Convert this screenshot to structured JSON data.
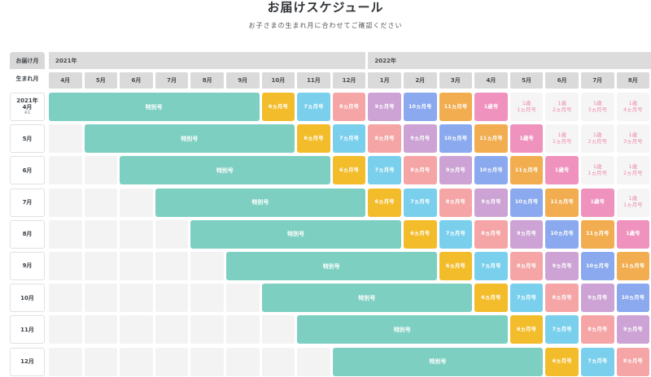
{
  "page": {
    "title": "お届けスケジュール",
    "subtitle": "お子さまの生まれ月に合わせてご確認ください"
  },
  "header": {
    "corner_top": "お届け月",
    "corner_bottom": "生まれ月",
    "years": [
      "2021年",
      "2022年"
    ],
    "months": [
      "4月",
      "5月",
      "6月",
      "7月",
      "8月",
      "9月",
      "10月",
      "11月",
      "12月",
      "1月",
      "2月",
      "3月",
      "4月",
      "5月",
      "6月",
      "7月",
      "8月"
    ]
  },
  "colors": {
    "特別号": "#7dcfc1",
    "6ヵ月号": "#f3bc2b",
    "7ヵ月号": "#7ad0ec",
    "8ヵ月号": "#f5a5a5",
    "9ヵ月号": "#cca3d4",
    "10ヵ月号": "#8aa9ee",
    "11ヵ月号": "#f1ad4f",
    "1歳号": "#ef92bd"
  },
  "rows": [
    {
      "label": "2021年",
      "label2": "4月",
      "note": "※1",
      "special": {
        "start": 0,
        "len": 6,
        "label": "特別号"
      },
      "cells": [
        "6ヵ月号",
        "7ヵ月号",
        "8ヵ月号",
        "9ヵ月号",
        "10ヵ月号",
        "11ヵ月号",
        "1歳号",
        "1歳\n1ヵ月号",
        "1歳\n2ヵ月号",
        "1歳\n3ヵ月号",
        "1歳\n4ヵ月号"
      ]
    },
    {
      "label": "5月",
      "special": {
        "start": 1,
        "len": 6,
        "label": "特別号"
      },
      "cells": [
        "6ヵ月号",
        "7ヵ月号",
        "8ヵ月号",
        "9ヵ月号",
        "10ヵ月号",
        "11ヵ月号",
        "1歳号",
        "1歳\n1ヵ月号",
        "1歳\n2ヵ月号",
        "1歳\n3ヵ月号"
      ]
    },
    {
      "label": "6月",
      "special": {
        "start": 2,
        "len": 6,
        "label": "特別号"
      },
      "cells": [
        "6ヵ月号",
        "7ヵ月号",
        "8ヵ月号",
        "9ヵ月号",
        "10ヵ月号",
        "11ヵ月号",
        "1歳号",
        "1歳\n1ヵ月号",
        "1歳\n2ヵ月号"
      ]
    },
    {
      "label": "7月",
      "special": {
        "start": 3,
        "len": 6,
        "label": "特別号"
      },
      "cells": [
        "6ヵ月号",
        "7ヵ月号",
        "8ヵ月号",
        "9ヵ月号",
        "10ヵ月号",
        "11ヵ月号",
        "1歳号",
        "1歳\n1ヵ月号"
      ]
    },
    {
      "label": "8月",
      "special": {
        "start": 4,
        "len": 6,
        "label": "特別号"
      },
      "cells": [
        "6ヵ月号",
        "7ヵ月号",
        "8ヵ月号",
        "9ヵ月号",
        "10ヵ月号",
        "11ヵ月号",
        "1歳号"
      ]
    },
    {
      "label": "9月",
      "special": {
        "start": 5,
        "len": 6,
        "label": "特別号"
      },
      "cells": [
        "6ヵ月号",
        "7ヵ月号",
        "8ヵ月号",
        "9ヵ月号",
        "10ヵ月号",
        "11ヵ月号"
      ]
    },
    {
      "label": "10月",
      "special": {
        "start": 6,
        "len": 6,
        "label": "特別号"
      },
      "cells": [
        "6ヵ月号",
        "7ヵ月号",
        "8ヵ月号",
        "9ヵ月号",
        "10ヵ月号"
      ]
    },
    {
      "label": "11月",
      "special": {
        "start": 7,
        "len": 6,
        "label": "特別号"
      },
      "cells": [
        "6ヵ月号",
        "7ヵ月号",
        "8ヵ月号",
        "9ヵ月号"
      ]
    },
    {
      "label": "12月",
      "special": {
        "start": 8,
        "len": 6,
        "label": "特別号"
      },
      "cells": [
        "6ヵ月号",
        "7ヵ月号",
        "8ヵ月号"
      ]
    }
  ]
}
